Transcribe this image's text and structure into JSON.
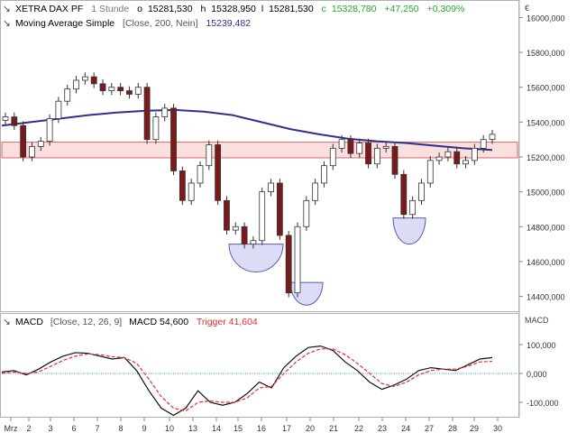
{
  "header": {
    "instrument": "XETRA DAX PF",
    "interval": "1 Stunde",
    "o_label": "o",
    "open": "15281,530",
    "h_label": "h",
    "high": "15328,950",
    "l_label": "l",
    "low": "15281,530",
    "c_label": "c",
    "close": "15328,780",
    "change_abs": "+47,250",
    "change_pct": "+0,309%",
    "ma_label": "Moving Average Simple",
    "ma_params": "[Close, 200, Nein]",
    "ma_value": "15239,482"
  },
  "macd_header": {
    "label": "MACD",
    "params": "[Close, 12, 26, 9]",
    "macd_text": "MACD 54,600",
    "trigger_text": "Trigger 41,604"
  },
  "price_axis": {
    "unit": "€",
    "ticks": [
      "16000,000",
      "15800,000",
      "15600,000",
      "15400,000",
      "15200,000",
      "15000,000",
      "14800,000",
      "14600,000",
      "14400,000"
    ]
  },
  "macd_axis": {
    "unit": "MACD",
    "ticks": [
      "100,000",
      "0,000",
      "-100,000"
    ]
  },
  "x_axis": {
    "labels": [
      "Mrz",
      "2",
      "3",
      "6",
      "7",
      "8",
      "9",
      "10",
      "13",
      "14",
      "15",
      "16",
      "17",
      "20",
      "21",
      "22",
      "23",
      "24",
      "27",
      "28",
      "29",
      "30"
    ]
  },
  "colors": {
    "candle_up": "#ffffff",
    "candle_down": "#7a1a1a",
    "candle_edge": "#333333",
    "ma": "#30308f",
    "band_fill": "#fbdede",
    "band_edge": "#d96a6a",
    "arc_fill": "#dcdcf6",
    "arc_edge": "#5a5ab0",
    "macd_line": "#111111",
    "trigger_line": "#e03030",
    "zero_line": "#2a9a9a",
    "positive": "#22aa22",
    "header_ma_value": "#30308f"
  },
  "chart_data": [
    {
      "type": "candlestick",
      "title": "XETRA DAX PF",
      "x_categories": [
        "Mrz",
        "2",
        "3",
        "6",
        "7",
        "8",
        "9",
        "10",
        "13",
        "14",
        "15",
        "16",
        "17",
        "20",
        "21",
        "22",
        "23",
        "24",
        "27",
        "28",
        "29",
        "30"
      ],
      "ylim": [
        14320,
        16080
      ],
      "close_series": [
        15430,
        15380,
        15200,
        15260,
        15290,
        15420,
        15520,
        15590,
        15640,
        15660,
        15620,
        15580,
        15600,
        15580,
        15560,
        15600,
        15300,
        15430,
        15480,
        15120,
        14950,
        15050,
        15150,
        15270,
        14950,
        14780,
        14800,
        14700,
        14720,
        15000,
        15050,
        14750,
        14420,
        14800,
        14950,
        15050,
        15150,
        15250,
        15300,
        15220,
        15280,
        15160,
        15250,
        15260,
        15100,
        14870,
        14950,
        15050,
        15180,
        15200,
        15230,
        15160,
        15180,
        15250,
        15300,
        15330
      ],
      "moving_average": {
        "label": "Moving Average Simple",
        "value_label": "15239,482",
        "values": [
          15380,
          15400,
          15420,
          15440,
          15455,
          15465,
          15470,
          15460,
          15440,
          15400,
          15360,
          15330,
          15305,
          15290,
          15280,
          15265,
          15250,
          15240
        ]
      },
      "band": [
        15195,
        15285
      ],
      "annotation_arcs": [
        {
          "center_day": "15-16",
          "from": 14700,
          "depth": 14540
        },
        {
          "center_day": "20",
          "from": 14480,
          "depth": 14350
        },
        {
          "center_day": "24",
          "from": 14850,
          "depth": 14700
        }
      ]
    },
    {
      "type": "line",
      "title": "MACD",
      "ylim": [
        -150,
        150
      ],
      "series": [
        {
          "name": "MACD",
          "values": [
            5,
            10,
            -5,
            15,
            40,
            60,
            72,
            70,
            60,
            50,
            55,
            10,
            -60,
            -120,
            -145,
            -120,
            -60,
            -100,
            -110,
            -100,
            -70,
            -30,
            -50,
            20,
            60,
            90,
            95,
            80,
            40,
            10,
            -30,
            -55,
            -40,
            -20,
            10,
            20,
            15,
            10,
            30,
            50,
            55
          ]
        },
        {
          "name": "Trigger",
          "values": [
            0,
            5,
            0,
            5,
            25,
            45,
            60,
            68,
            65,
            58,
            55,
            35,
            -20,
            -80,
            -120,
            -130,
            -100,
            -95,
            -100,
            -100,
            -85,
            -50,
            -45,
            0,
            40,
            70,
            85,
            85,
            65,
            35,
            0,
            -35,
            -45,
            -30,
            -5,
            10,
            15,
            15,
            25,
            40,
            42
          ]
        }
      ]
    }
  ]
}
